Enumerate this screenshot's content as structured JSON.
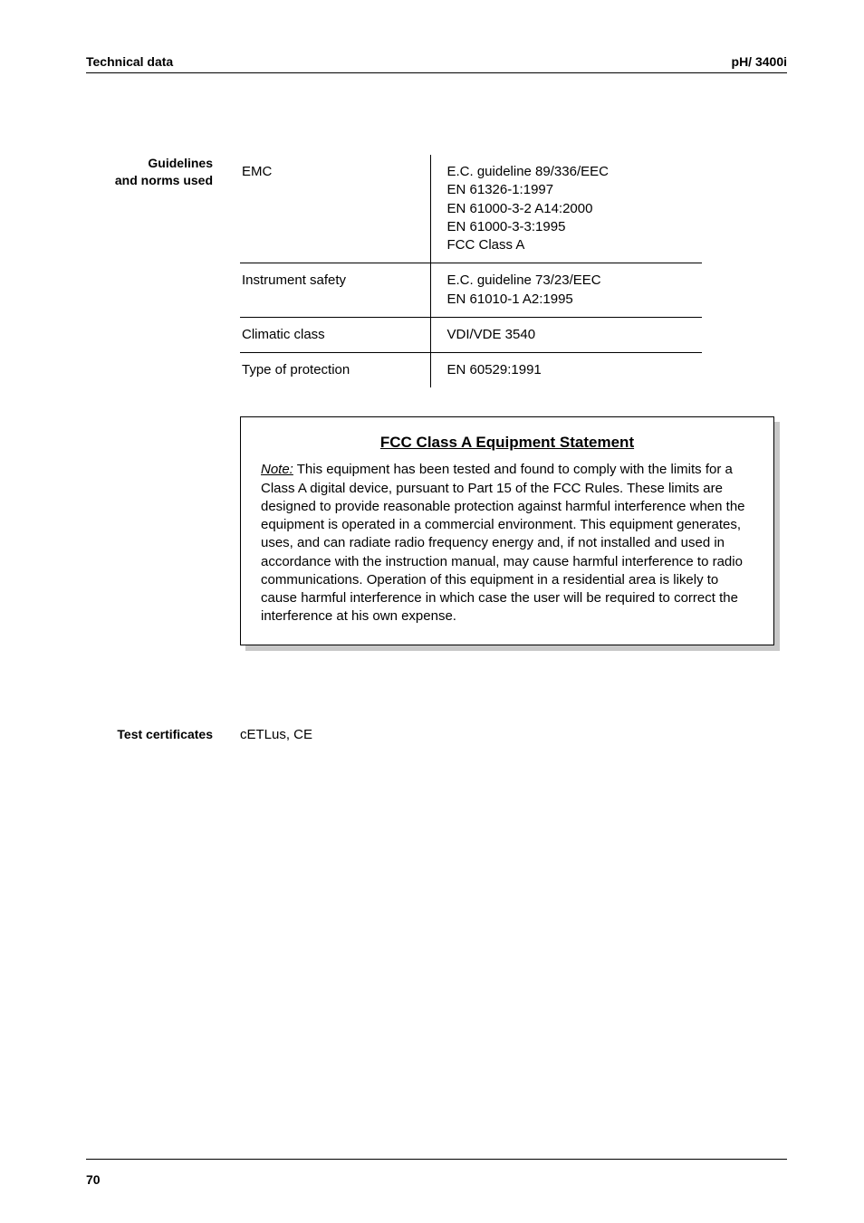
{
  "header": {
    "left": "Technical data",
    "right": "pH/ 3400i"
  },
  "side_label": {
    "line1": "Guidelines",
    "line2": "and norms used"
  },
  "spec_table": {
    "rows": [
      {
        "name": "EMC",
        "value": "E.C. guideline 89/336/EEC\nEN 61326-1:1997\nEN 61000-3-2 A14:2000\nEN 61000-3-3:1995\nFCC Class A"
      },
      {
        "name": "Instrument safety",
        "value": "E.C. guideline 73/23/EEC\nEN 61010-1 A2:1995"
      },
      {
        "name": "Climatic class",
        "value": "VDI/VDE 3540"
      },
      {
        "name": "Type of protection",
        "value": "EN 60529:1991"
      }
    ]
  },
  "statement": {
    "title": "FCC Class A Equipment Statement",
    "note_label": "Note:",
    "body": "  This equipment has been tested and found to comply with the limits for a Class A digital device, pursuant to Part 15 of the FCC Rules. These limits are designed to provide reasonable protection against harmful interference when the equipment is operated in a commercial environment. This equipment generates, uses, and can radiate radio frequency energy and, if not installed and used in accordance with the instruction manual, may cause harmful interference to radio communications. Operation of this equipment in a residential area is likely to cause harmful interference in which case the user will be required to correct the interference at his own expense."
  },
  "certificates": {
    "label": "Test certificates",
    "value": "cETLus, CE"
  },
  "page_number": "70"
}
